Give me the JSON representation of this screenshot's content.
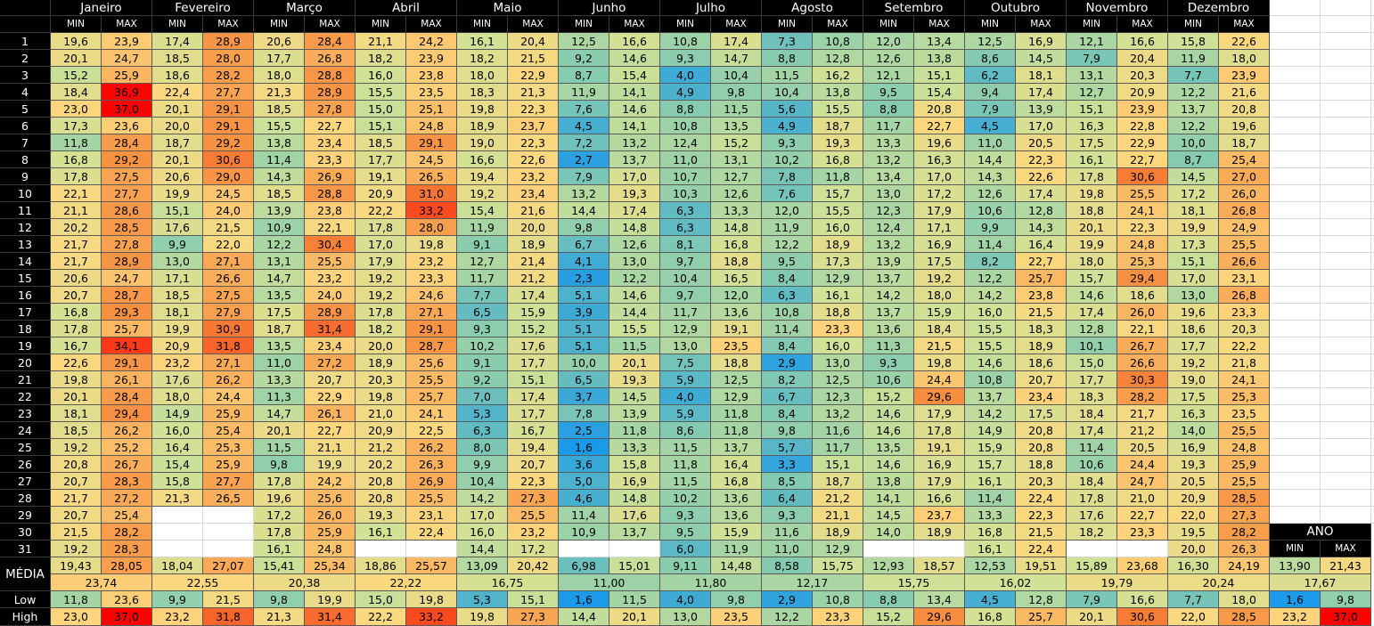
{
  "months": [
    "Janeiro",
    "Fevereiro",
    "Março",
    "Abril",
    "Maio",
    "Junho",
    "Julho",
    "Agosto",
    "Setembro",
    "Outubro",
    "Novembro",
    "Dezembro"
  ],
  "min_label": "MIN",
  "max_label": "MAX",
  "year_label": "ANO",
  "color_scale": [
    "#1a9ae8",
    "#85cbb0",
    "#cfe196",
    "#fdd77e",
    "#f68a3c",
    "#ff0000"
  ],
  "days": [
    [
      "1",
      "19,6",
      "23,9",
      "17,4",
      "28,9",
      "20,6",
      "28,4",
      "21,1",
      "24,2",
      "16,1",
      "20,4",
      "12,5",
      "16,6",
      "10,8",
      "17,4",
      "7,3",
      "10,8",
      "12,0",
      "13,4",
      "12,5",
      "16,9",
      "12,1",
      "16,6",
      "15,8",
      "22,6"
    ],
    [
      "2",
      "20,1",
      "24,7",
      "18,5",
      "28,0",
      "17,7",
      "26,8",
      "18,2",
      "23,9",
      "18,2",
      "21,5",
      "9,2",
      "14,6",
      "9,3",
      "14,7",
      "8,8",
      "12,8",
      "12,6",
      "13,8",
      "8,6",
      "14,5",
      "7,9",
      "20,4",
      "11,9",
      "18,0"
    ],
    [
      "3",
      "15,2",
      "25,9",
      "18,6",
      "28,2",
      "18,0",
      "28,8",
      "16,0",
      "23,8",
      "18,0",
      "22,9",
      "8,7",
      "15,4",
      "4,0",
      "10,4",
      "11,5",
      "16,2",
      "12,1",
      "15,1",
      "6,2",
      "18,1",
      "13,1",
      "20,3",
      "7,7",
      "23,9"
    ],
    [
      "4",
      "18,4",
      "36,9",
      "22,4",
      "27,7",
      "21,3",
      "28,9",
      "15,5",
      "23,5",
      "18,3",
      "21,3",
      "11,9",
      "14,1",
      "4,9",
      "9,8",
      "10,4",
      "13,8",
      "9,5",
      "15,4",
      "9,4",
      "17,4",
      "12,7",
      "20,9",
      "12,2",
      "21,6"
    ],
    [
      "5",
      "23,0",
      "37,0",
      "20,1",
      "29,1",
      "18,5",
      "27,8",
      "15,0",
      "25,1",
      "19,8",
      "22,3",
      "7,6",
      "14,6",
      "8,8",
      "11,5",
      "5,6",
      "15,5",
      "8,8",
      "20,8",
      "7,9",
      "13,9",
      "15,1",
      "23,9",
      "13,7",
      "20,8"
    ],
    [
      "6",
      "17,3",
      "23,6",
      "20,0",
      "29,1",
      "15,5",
      "22,7",
      "15,1",
      "24,8",
      "18,9",
      "23,7",
      "4,5",
      "14,1",
      "10,8",
      "13,5",
      "4,9",
      "18,7",
      "11,7",
      "22,7",
      "4,5",
      "17,0",
      "16,3",
      "22,8",
      "12,2",
      "19,6"
    ],
    [
      "7",
      "11,8",
      "28,4",
      "18,7",
      "29,2",
      "13,8",
      "23,4",
      "18,5",
      "29,1",
      "19,0",
      "22,3",
      "7,2",
      "13,2",
      "12,4",
      "15,2",
      "9,3",
      "19,3",
      "13,3",
      "19,6",
      "11,0",
      "20,5",
      "17,5",
      "22,9",
      "10,0",
      "18,7"
    ],
    [
      "8",
      "16,8",
      "29,2",
      "20,1",
      "30,6",
      "11,4",
      "23,3",
      "17,7",
      "24,5",
      "16,6",
      "22,6",
      "2,7",
      "13,7",
      "11,0",
      "13,1",
      "10,2",
      "16,8",
      "13,2",
      "16,3",
      "14,4",
      "22,3",
      "16,1",
      "22,7",
      "8,7",
      "25,4"
    ],
    [
      "9",
      "17,8",
      "27,5",
      "20,6",
      "29,0",
      "14,3",
      "26,9",
      "19,1",
      "26,5",
      "19,4",
      "23,2",
      "7,9",
      "17,0",
      "10,7",
      "12,7",
      "7,8",
      "11,8",
      "13,4",
      "17,0",
      "14,3",
      "22,6",
      "17,8",
      "30,6",
      "14,5",
      "27,0"
    ],
    [
      "10",
      "22,1",
      "27,7",
      "19,9",
      "24,5",
      "18,5",
      "28,8",
      "20,9",
      "31,0",
      "19,2",
      "23,4",
      "13,2",
      "19,3",
      "10,3",
      "12,6",
      "7,6",
      "15,7",
      "13,0",
      "17,2",
      "12,6",
      "17,4",
      "19,8",
      "25,5",
      "17,2",
      "26,0"
    ],
    [
      "11",
      "21,1",
      "28,6",
      "15,1",
      "24,0",
      "13,9",
      "23,8",
      "22,2",
      "33,2",
      "15,4",
      "21,6",
      "14,4",
      "17,4",
      "6,3",
      "13,3",
      "12,0",
      "15,5",
      "12,3",
      "17,9",
      "10,6",
      "12,8",
      "18,8",
      "24,1",
      "18,1",
      "26,8"
    ],
    [
      "12",
      "20,2",
      "28,5",
      "17,6",
      "21,5",
      "10,9",
      "22,1",
      "17,8",
      "28,0",
      "11,9",
      "20,0",
      "9,8",
      "14,8",
      "6,3",
      "14,8",
      "11,9",
      "16,0",
      "12,4",
      "17,1",
      "9,9",
      "14,3",
      "20,1",
      "22,3",
      "19,9",
      "24,9"
    ],
    [
      "13",
      "21,7",
      "27,8",
      "9,9",
      "22,0",
      "12,2",
      "30,4",
      "17,0",
      "19,8",
      "9,1",
      "18,9",
      "6,7",
      "12,6",
      "8,1",
      "16,8",
      "12,2",
      "18,9",
      "13,2",
      "16,9",
      "11,4",
      "16,4",
      "19,9",
      "24,8",
      "17,3",
      "25,5"
    ],
    [
      "14",
      "21,7",
      "28,9",
      "13,0",
      "27,1",
      "13,1",
      "25,5",
      "17,9",
      "23,2",
      "12,7",
      "21,4",
      "4,1",
      "13,0",
      "9,7",
      "18,8",
      "9,5",
      "17,3",
      "13,9",
      "17,5",
      "8,2",
      "22,7",
      "18,0",
      "25,3",
      "15,1",
      "26,6"
    ],
    [
      "15",
      "20,6",
      "24,7",
      "17,1",
      "26,6",
      "14,7",
      "23,2",
      "19,2",
      "23,3",
      "11,7",
      "21,2",
      "2,3",
      "12,2",
      "10,4",
      "16,5",
      "8,4",
      "12,9",
      "13,7",
      "19,2",
      "12,2",
      "25,7",
      "15,7",
      "29,4",
      "17,0",
      "23,1"
    ],
    [
      "16",
      "20,7",
      "28,7",
      "18,5",
      "27,5",
      "13,5",
      "24,0",
      "19,2",
      "24,6",
      "7,7",
      "17,4",
      "5,1",
      "14,6",
      "9,7",
      "12,0",
      "6,3",
      "16,1",
      "14,2",
      "18,0",
      "14,2",
      "23,8",
      "14,6",
      "18,6",
      "13,0",
      "26,8"
    ],
    [
      "17",
      "16,8",
      "29,3",
      "18,1",
      "27,9",
      "17,5",
      "28,9",
      "17,8",
      "27,1",
      "6,5",
      "15,9",
      "3,9",
      "14,4",
      "11,7",
      "13,6",
      "10,8",
      "18,8",
      "13,7",
      "15,9",
      "16,0",
      "21,5",
      "17,4",
      "26,0",
      "19,6",
      "23,3"
    ],
    [
      "18",
      "17,8",
      "25,7",
      "19,9",
      "30,9",
      "18,7",
      "31,4",
      "18,2",
      "29,1",
      "9,3",
      "15,2",
      "5,1",
      "15,5",
      "12,9",
      "19,1",
      "11,4",
      "23,3",
      "13,6",
      "18,4",
      "15,5",
      "18,3",
      "12,8",
      "22,1",
      "18,6",
      "20,3"
    ],
    [
      "19",
      "16,7",
      "34,1",
      "20,9",
      "31,8",
      "13,5",
      "23,4",
      "20,0",
      "28,7",
      "10,2",
      "17,6",
      "5,1",
      "11,5",
      "13,0",
      "23,5",
      "8,4",
      "16,0",
      "11,3",
      "21,5",
      "15,5",
      "18,9",
      "10,1",
      "26,7",
      "17,7",
      "22,2"
    ],
    [
      "20",
      "22,6",
      "29,1",
      "23,2",
      "27,1",
      "11,0",
      "27,2",
      "18,9",
      "25,6",
      "9,1",
      "17,7",
      "10,0",
      "20,1",
      "7,5",
      "18,8",
      "2,9",
      "13,0",
      "9,3",
      "19,8",
      "14,6",
      "18,6",
      "15,0",
      "26,6",
      "19,2",
      "21,8"
    ],
    [
      "21",
      "19,8",
      "26,1",
      "17,6",
      "26,2",
      "13,3",
      "20,7",
      "20,3",
      "25,5",
      "9,2",
      "15,1",
      "6,5",
      "19,3",
      "5,9",
      "12,5",
      "8,2",
      "12,5",
      "10,6",
      "24,4",
      "10,8",
      "20,7",
      "17,7",
      "30,3",
      "19,0",
      "24,1"
    ],
    [
      "22",
      "20,1",
      "28,4",
      "18,0",
      "24,4",
      "11,3",
      "22,9",
      "19,8",
      "25,7",
      "7,0",
      "17,4",
      "3,7",
      "14,5",
      "4,0",
      "12,9",
      "6,7",
      "12,3",
      "15,2",
      "29,6",
      "13,7",
      "23,4",
      "18,3",
      "28,2",
      "17,5",
      "25,3"
    ],
    [
      "23",
      "18,1",
      "29,4",
      "14,9",
      "25,9",
      "14,7",
      "26,1",
      "21,0",
      "24,1",
      "5,3",
      "17,7",
      "7,8",
      "13,9",
      "5,9",
      "11,8",
      "8,4",
      "13,2",
      "14,6",
      "17,9",
      "14,2",
      "17,5",
      "18,4",
      "21,7",
      "16,3",
      "23,5"
    ],
    [
      "24",
      "18,5",
      "26,2",
      "16,0",
      "25,4",
      "20,1",
      "22,7",
      "20,9",
      "22,5",
      "6,3",
      "16,7",
      "2,5",
      "11,8",
      "8,6",
      "11,8",
      "9,8",
      "11,6",
      "14,6",
      "17,8",
      "14,9",
      "20,8",
      "17,4",
      "21,2",
      "14,0",
      "25,5"
    ],
    [
      "25",
      "19,2",
      "25,2",
      "16,4",
      "25,3",
      "11,5",
      "21,1",
      "21,2",
      "26,2",
      "8,0",
      "19,4",
      "1,6",
      "13,3",
      "11,5",
      "13,7",
      "5,7",
      "11,7",
      "13,5",
      "19,1",
      "15,9",
      "20,8",
      "11,4",
      "20,5",
      "16,9",
      "24,8"
    ],
    [
      "26",
      "20,8",
      "26,7",
      "15,4",
      "25,9",
      "9,8",
      "19,9",
      "20,2",
      "26,3",
      "9,9",
      "20,7",
      "3,6",
      "15,8",
      "11,8",
      "16,4",
      "3,3",
      "15,1",
      "14,6",
      "16,9",
      "15,7",
      "18,8",
      "10,6",
      "24,4",
      "19,3",
      "25,9"
    ],
    [
      "27",
      "20,7",
      "28,3",
      "15,8",
      "27,7",
      "17,8",
      "24,2",
      "20,8",
      "26,9",
      "10,4",
      "22,3",
      "5,0",
      "16,9",
      "11,5",
      "16,8",
      "8,5",
      "18,7",
      "13,8",
      "17,9",
      "16,1",
      "20,3",
      "18,4",
      "24,7",
      "20,5",
      "25,5"
    ],
    [
      "28",
      "21,7",
      "27,2",
      "21,3",
      "26,5",
      "19,6",
      "25,6",
      "20,8",
      "25,5",
      "14,2",
      "27,3",
      "4,6",
      "14,8",
      "10,2",
      "13,6",
      "6,4",
      "21,2",
      "14,1",
      "16,6",
      "11,4",
      "22,4",
      "17,8",
      "21,0",
      "20,9",
      "28,5"
    ],
    [
      "29",
      "20,7",
      "25,4",
      null,
      null,
      "17,2",
      "26,0",
      "19,3",
      "23,1",
      "17,0",
      "25,5",
      "11,4",
      "17,6",
      "9,3",
      "13,6",
      "9,3",
      "21,1",
      "14,5",
      "23,7",
      "13,3",
      "22,3",
      "17,6",
      "22,7",
      "22,0",
      "27,3"
    ],
    [
      "30",
      "21,5",
      "28,2",
      null,
      null,
      "17,8",
      "25,9",
      "16,1",
      "22,4",
      "16,0",
      "23,2",
      "10,9",
      "13,7",
      "9,5",
      "15,9",
      "11,6",
      "18,9",
      "14,0",
      "18,9",
      "16,8",
      "21,5",
      "18,2",
      "23,3",
      "19,5",
      "28,2"
    ],
    [
      "31",
      "19,2",
      "28,3",
      null,
      null,
      "16,1",
      "24,8",
      null,
      null,
      "14,4",
      "17,2",
      null,
      null,
      "6,0",
      "11,9",
      "11,0",
      "12,9",
      null,
      null,
      "16,1",
      "22,4",
      null,
      null,
      "20,0",
      "26,3"
    ]
  ],
  "summary": {
    "mean": {
      "label": "MÉDIA",
      "values": [
        "19,43",
        "28,05",
        "18,04",
        "27,07",
        "15,41",
        "25,34",
        "18,86",
        "25,57",
        "13,09",
        "20,42",
        "6,98",
        "15,01",
        "9,11",
        "14,48",
        "8,58",
        "15,75",
        "12,93",
        "18,57",
        "12,53",
        "19,51",
        "15,89",
        "23,68",
        "16,30",
        "24,19",
        "13,90",
        "21,43"
      ],
      "averages": [
        "23,74",
        "22,55",
        "20,38",
        "22,22",
        "16,75",
        "11,00",
        "11,80",
        "12,17",
        "15,75",
        "16,02",
        "19,79",
        "20,24",
        "17,67"
      ]
    },
    "low": {
      "label": "Low",
      "values": [
        "11,8",
        "23,6",
        "9,9",
        "21,5",
        "9,8",
        "19,9",
        "15,0",
        "19,8",
        "5,3",
        "15,1",
        "1,6",
        "11,5",
        "4,0",
        "9,8",
        "2,9",
        "10,8",
        "8,8",
        "13,4",
        "4,5",
        "12,8",
        "7,9",
        "16,6",
        "7,7",
        "18,0",
        "1,6",
        "9,8"
      ]
    },
    "high": {
      "label": "High",
      "values": [
        "23,0",
        "37,0",
        "23,2",
        "31,8",
        "21,3",
        "31,4",
        "22,2",
        "33,2",
        "19,8",
        "27,3",
        "14,4",
        "20,1",
        "13,0",
        "23,5",
        "12,2",
        "23,3",
        "15,2",
        "29,6",
        "16,8",
        "25,7",
        "20,1",
        "30,6",
        "22,0",
        "28,5",
        "23,2",
        "37,0"
      ]
    }
  }
}
